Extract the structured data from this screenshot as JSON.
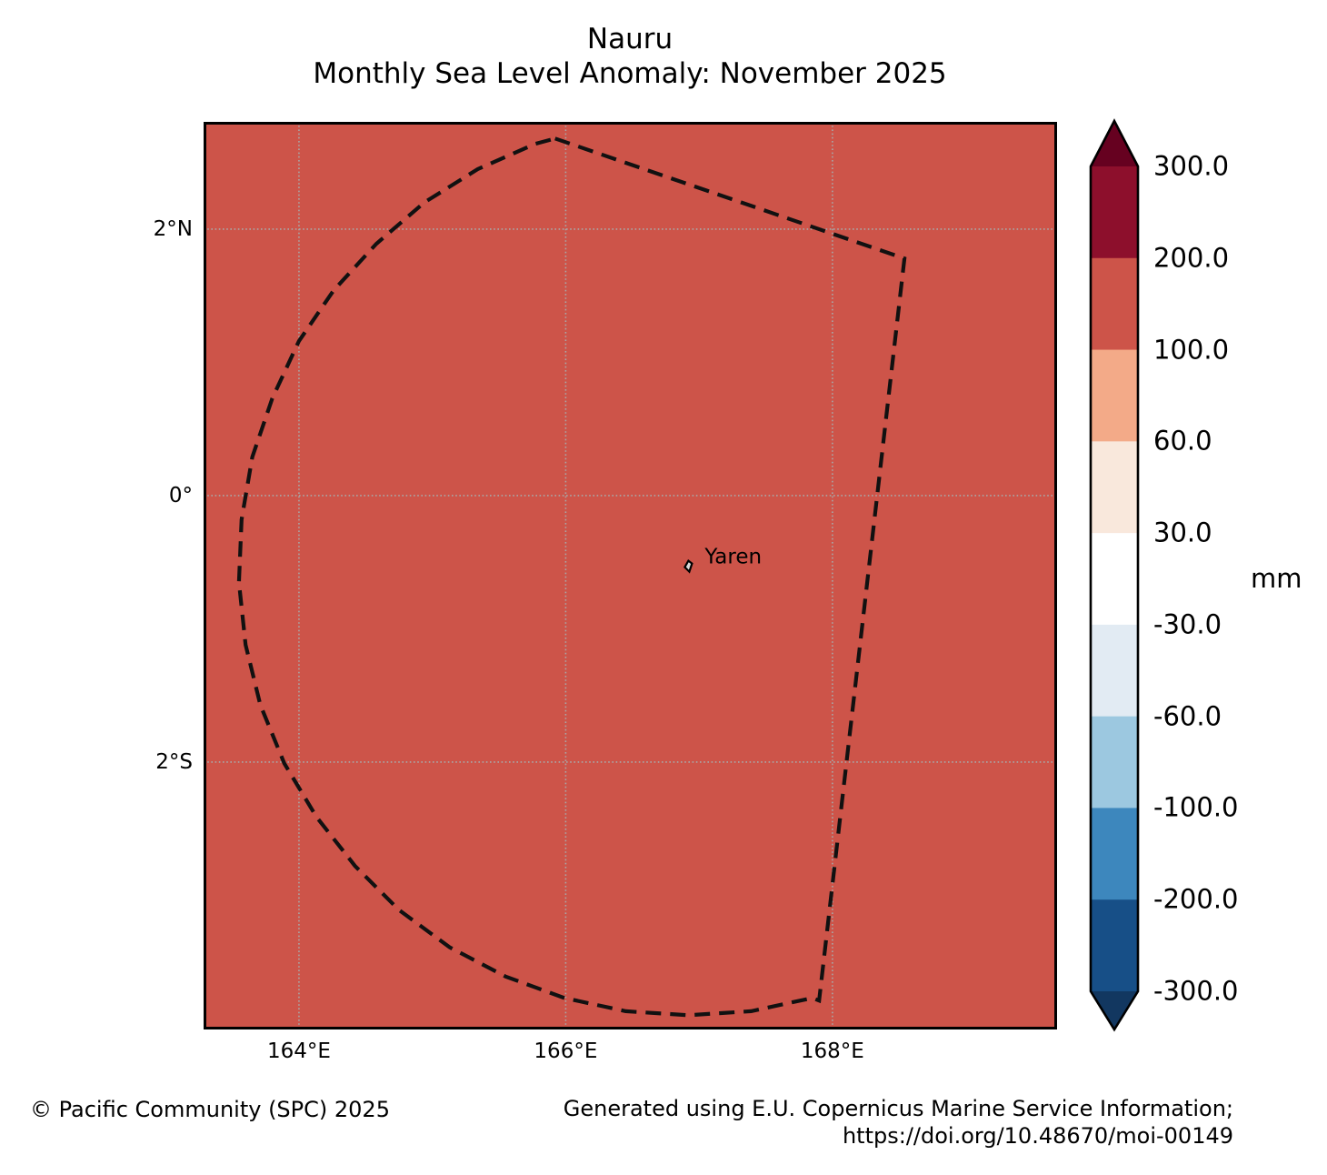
{
  "title": {
    "line1": "Nauru",
    "line2": "Monthly Sea Level Anomaly: November 2025"
  },
  "footer": {
    "left": "© Pacific Community (SPC) 2025",
    "right_line1": "Generated using E.U. Copernicus Marine Service Information;",
    "right_line2": "https://doi.org/10.48670/moi-00149"
  },
  "map": {
    "fill_color": "#cd5449",
    "gridline_color": "#a8a8a8",
    "boundary_color": "#111111",
    "frame_color": "#000000",
    "lon_range": [
      163.285,
      169.684
    ],
    "lat_range": [
      2.805,
      -4.007
    ],
    "x_ticks": [
      {
        "lon": 164,
        "label": "164°E"
      },
      {
        "lon": 166,
        "label": "166°E"
      },
      {
        "lon": 168,
        "label": "168°E"
      }
    ],
    "y_ticks": [
      {
        "lat": 2,
        "label": "2°N"
      },
      {
        "lat": 0,
        "label": "0°"
      },
      {
        "lat": -2,
        "label": "2°S"
      }
    ],
    "station": {
      "name": "Yaren",
      "lon": 166.92,
      "lat": -0.53
    },
    "island_fill": "#d9d9d9",
    "eez_boundary": [
      [
        165.92,
        2.68
      ],
      [
        168.54,
        1.78
      ],
      [
        167.9,
        -3.79
      ],
      [
        167.85,
        -3.77
      ],
      [
        167.39,
        -3.87
      ],
      [
        166.92,
        -3.9
      ],
      [
        166.45,
        -3.87
      ],
      [
        165.99,
        -3.77
      ],
      [
        165.55,
        -3.61
      ],
      [
        165.13,
        -3.39
      ],
      [
        164.75,
        -3.11
      ],
      [
        164.42,
        -2.78
      ],
      [
        164.13,
        -2.41
      ],
      [
        163.89,
        -2.01
      ],
      [
        163.71,
        -1.57
      ],
      [
        163.6,
        -1.12
      ],
      [
        163.55,
        -0.65
      ],
      [
        163.57,
        -0.18
      ],
      [
        163.65,
        0.29
      ],
      [
        163.8,
        0.73
      ],
      [
        164.0,
        1.16
      ],
      [
        164.26,
        1.54
      ],
      [
        164.58,
        1.89
      ],
      [
        164.94,
        2.2
      ],
      [
        165.34,
        2.45
      ],
      [
        165.77,
        2.64
      ]
    ]
  },
  "colorbar": {
    "units_label": "mm",
    "tick_labels": [
      "300.0",
      "200.0",
      "100.0",
      "60.0",
      "30.0",
      "-30.0",
      "-60.0",
      "-100.0",
      "-200.0",
      "-300.0"
    ],
    "segment_colors_top_to_bottom": [
      "#8d0f2c",
      "#cd5449",
      "#f3aa88",
      "#f9e8dc",
      "#ffffff",
      "#e2ebf3",
      "#9cc8e0",
      "#3d87bd",
      "#174f87"
    ],
    "over_color": "#660120",
    "under_color": "#123760",
    "outline_color": "#000000"
  },
  "chart_data": {
    "type": "heatmap",
    "title": "Nauru",
    "subtitle": "Monthly Sea Level Anomaly: November 2025",
    "variable": "Monthly Sea Level Anomaly",
    "month": "November 2025",
    "units": "mm",
    "projection": "lat-lon map",
    "lon_range_deg_e": [
      163.3,
      169.7
    ],
    "lat_range_deg_n": [
      2.8,
      -4.0
    ],
    "x_tick_labels": [
      "164°E",
      "166°E",
      "168°E"
    ],
    "y_tick_labels": [
      "2°N",
      "0°",
      "2°S"
    ],
    "colorbar_tick_values_mm": [
      300,
      200,
      100,
      60,
      30,
      -30,
      -60,
      -100,
      -200,
      -300
    ],
    "colorbar_extend": "both",
    "legend_position": "right",
    "grid": true,
    "displayed_anomaly_bin_mm": [
      100,
      200
    ],
    "note": "Entire mapped EEZ region falls in the +100 to +200 mm anomaly color bin",
    "station": {
      "name": "Yaren",
      "lon_deg_e": 166.92,
      "lat_deg_n": -0.53
    },
    "boundary_shown": "Nauru EEZ (dashed)"
  }
}
